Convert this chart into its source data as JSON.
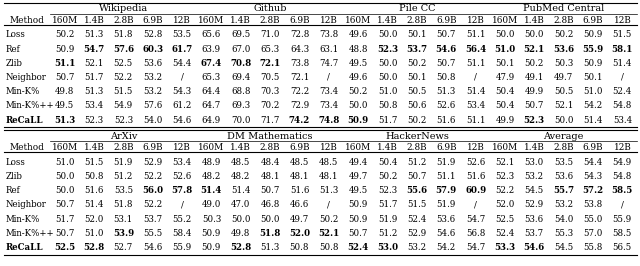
{
  "section_headers_row1": [
    "Wikipedia",
    "Github",
    "Pile CC",
    "PubMed Central"
  ],
  "section_headers_row2": [
    "ArXiv",
    "DM Mathematics",
    "HackerNews",
    "Average"
  ],
  "col_groups": [
    "160M",
    "1.4B",
    "2.8B",
    "6.9B",
    "12B"
  ],
  "table1_order": [
    "Loss",
    "Ref",
    "Zlib",
    "Neighbor",
    "Min-K%",
    "Min-K%++",
    "ReCaLL"
  ],
  "table2_order": [
    "Loss",
    "Zlib",
    "Ref",
    "Neighbor",
    "Min-K%",
    "Min-K%++",
    "ReCaLL"
  ],
  "table1": {
    "Wikipedia": {
      "Loss": [
        "50.2",
        "51.3",
        "51.8",
        "52.8",
        "53.5"
      ],
      "Ref": [
        "50.9",
        "54.7",
        "57.6",
        "60.3",
        "61.7"
      ],
      "Zlib": [
        "51.1",
        "52.1",
        "52.5",
        "53.6",
        "54.4"
      ],
      "Neighbor": [
        "50.7",
        "51.7",
        "52.2",
        "53.2",
        "/"
      ],
      "Min-K%": [
        "49.8",
        "51.3",
        "51.5",
        "53.2",
        "54.3"
      ],
      "Min-K%++": [
        "49.5",
        "53.4",
        "54.9",
        "57.6",
        "61.2"
      ],
      "ReCaLL": [
        "51.3",
        "52.3",
        "52.3",
        "54.0",
        "54.6"
      ]
    },
    "Github": {
      "Loss": [
        "65.6",
        "69.5",
        "71.0",
        "72.8",
        "73.8"
      ],
      "Ref": [
        "63.9",
        "67.0",
        "65.3",
        "64.3",
        "63.1"
      ],
      "Zlib": [
        "67.4",
        "70.8",
        "72.1",
        "73.8",
        "74.7"
      ],
      "Neighbor": [
        "65.3",
        "69.4",
        "70.5",
        "72.1",
        "/"
      ],
      "Min-K%": [
        "64.4",
        "68.8",
        "70.3",
        "72.2",
        "73.4"
      ],
      "Min-K%++": [
        "64.7",
        "69.3",
        "70.2",
        "72.9",
        "73.4"
      ],
      "ReCaLL": [
        "64.9",
        "70.0",
        "71.7",
        "74.2",
        "74.8"
      ]
    },
    "Pile CC": {
      "Loss": [
        "49.6",
        "50.0",
        "50.1",
        "50.7",
        "51.1"
      ],
      "Ref": [
        "48.8",
        "52.3",
        "53.7",
        "54.6",
        "56.4"
      ],
      "Zlib": [
        "49.5",
        "50.0",
        "50.2",
        "50.7",
        "51.1"
      ],
      "Neighbor": [
        "49.6",
        "50.0",
        "50.1",
        "50.8",
        "/"
      ],
      "Min-K%": [
        "50.2",
        "51.0",
        "50.5",
        "51.3",
        "51.4"
      ],
      "Min-K%++": [
        "50.0",
        "50.8",
        "50.6",
        "52.6",
        "53.4"
      ],
      "ReCaLL": [
        "50.9",
        "51.7",
        "50.2",
        "51.6",
        "51.1"
      ]
    },
    "PubMed Central": {
      "Loss": [
        "50.0",
        "50.0",
        "50.2",
        "50.9",
        "51.5"
      ],
      "Ref": [
        "51.0",
        "52.1",
        "53.6",
        "55.9",
        "58.1"
      ],
      "Zlib": [
        "50.1",
        "50.2",
        "50.3",
        "50.9",
        "51.4"
      ],
      "Neighbor": [
        "47.9",
        "49.1",
        "49.7",
        "50.1",
        "/"
      ],
      "Min-K%": [
        "50.4",
        "49.9",
        "50.5",
        "51.0",
        "52.4"
      ],
      "Min-K%++": [
        "50.4",
        "50.7",
        "52.1",
        "54.2",
        "54.8"
      ],
      "ReCaLL": [
        "49.9",
        "52.3",
        "50.0",
        "51.4",
        "53.4"
      ]
    }
  },
  "table2": {
    "ArXiv": {
      "Loss": [
        "51.0",
        "51.5",
        "51.9",
        "52.9",
        "53.4"
      ],
      "Zlib": [
        "50.0",
        "50.8",
        "51.2",
        "52.2",
        "52.6"
      ],
      "Ref": [
        "50.0",
        "51.6",
        "53.5",
        "56.0",
        "57.8"
      ],
      "Neighbor": [
        "50.7",
        "51.4",
        "51.8",
        "52.2",
        "/"
      ],
      "Min-K%": [
        "51.7",
        "52.0",
        "53.1",
        "53.7",
        "55.2"
      ],
      "Min-K%++": [
        "50.7",
        "51.0",
        "53.9",
        "55.5",
        "58.4"
      ],
      "ReCaLL": [
        "52.5",
        "52.8",
        "52.7",
        "54.6",
        "55.9"
      ]
    },
    "DM Mathematics": {
      "Loss": [
        "48.9",
        "48.5",
        "48.4",
        "48.5",
        "48.5"
      ],
      "Zlib": [
        "48.2",
        "48.2",
        "48.1",
        "48.1",
        "48.1"
      ],
      "Ref": [
        "51.4",
        "51.4",
        "50.7",
        "51.6",
        "51.3"
      ],
      "Neighbor": [
        "49.0",
        "47.0",
        "46.8",
        "46.6",
        "/"
      ],
      "Min-K%": [
        "50.3",
        "50.0",
        "50.0",
        "49.7",
        "50.2"
      ],
      "Min-K%++": [
        "50.9",
        "49.8",
        "51.8",
        "52.0",
        "52.1"
      ],
      "ReCaLL": [
        "50.9",
        "52.8",
        "51.3",
        "50.8",
        "50.8"
      ]
    },
    "HackerNews": {
      "Loss": [
        "49.4",
        "50.4",
        "51.2",
        "51.9",
        "52.6"
      ],
      "Zlib": [
        "49.7",
        "50.2",
        "50.7",
        "51.1",
        "51.6"
      ],
      "Ref": [
        "49.5",
        "52.3",
        "55.6",
        "57.9",
        "60.9"
      ],
      "Neighbor": [
        "50.9",
        "51.7",
        "51.5",
        "51.9",
        "/"
      ],
      "Min-K%": [
        "50.9",
        "51.9",
        "52.4",
        "53.6",
        "54.7"
      ],
      "Min-K%++": [
        "50.7",
        "51.2",
        "52.9",
        "54.6",
        "56.8"
      ],
      "ReCaLL": [
        "52.4",
        "53.0",
        "53.2",
        "54.2",
        "54.7"
      ]
    },
    "Average": {
      "Loss": [
        "52.1",
        "53.0",
        "53.5",
        "54.4",
        "54.9"
      ],
      "Zlib": [
        "52.3",
        "53.2",
        "53.6",
        "54.3",
        "54.8"
      ],
      "Ref": [
        "52.2",
        "54.5",
        "55.7",
        "57.2",
        "58.5"
      ],
      "Neighbor": [
        "52.0",
        "52.9",
        "53.2",
        "53.8",
        "/"
      ],
      "Min-K%": [
        "52.5",
        "53.6",
        "54.0",
        "55.0",
        "55.9"
      ],
      "Min-K%++": [
        "52.4",
        "53.7",
        "55.3",
        "57.0",
        "58.5"
      ],
      "ReCaLL": [
        "53.3",
        "54.6",
        "54.5",
        "55.8",
        "56.5"
      ]
    }
  },
  "bold_cells_t1": {
    "Wikipedia": {
      "Ref": [
        1,
        2,
        3,
        4
      ],
      "Zlib": [
        0
      ],
      "ReCaLL": [
        0
      ]
    },
    "Github": {
      "Zlib": [
        0,
        1,
        2
      ],
      "ReCaLL": [
        3,
        4
      ]
    },
    "Pile CC": {
      "Ref": [
        1,
        2,
        3,
        4
      ],
      "ReCaLL": [
        0
      ]
    },
    "PubMed Central": {
      "Ref": [
        0,
        1,
        2,
        3,
        4
      ],
      "ReCaLL": [
        1
      ]
    }
  },
  "bold_cells_t2": {
    "ArXiv": {
      "Ref": [
        3,
        4
      ],
      "Min-K%++": [
        2
      ],
      "ReCaLL": [
        0,
        1
      ]
    },
    "DM Mathematics": {
      "Ref": [
        0
      ],
      "Min-K%++": [
        2,
        3,
        4
      ],
      "ReCaLL": [
        1
      ]
    },
    "HackerNews": {
      "Ref": [
        2,
        3,
        4
      ],
      "ReCaLL": [
        0,
        1
      ]
    },
    "Average": {
      "Ref": [
        2,
        3,
        4
      ],
      "ReCaLL": [
        0,
        1
      ]
    }
  }
}
